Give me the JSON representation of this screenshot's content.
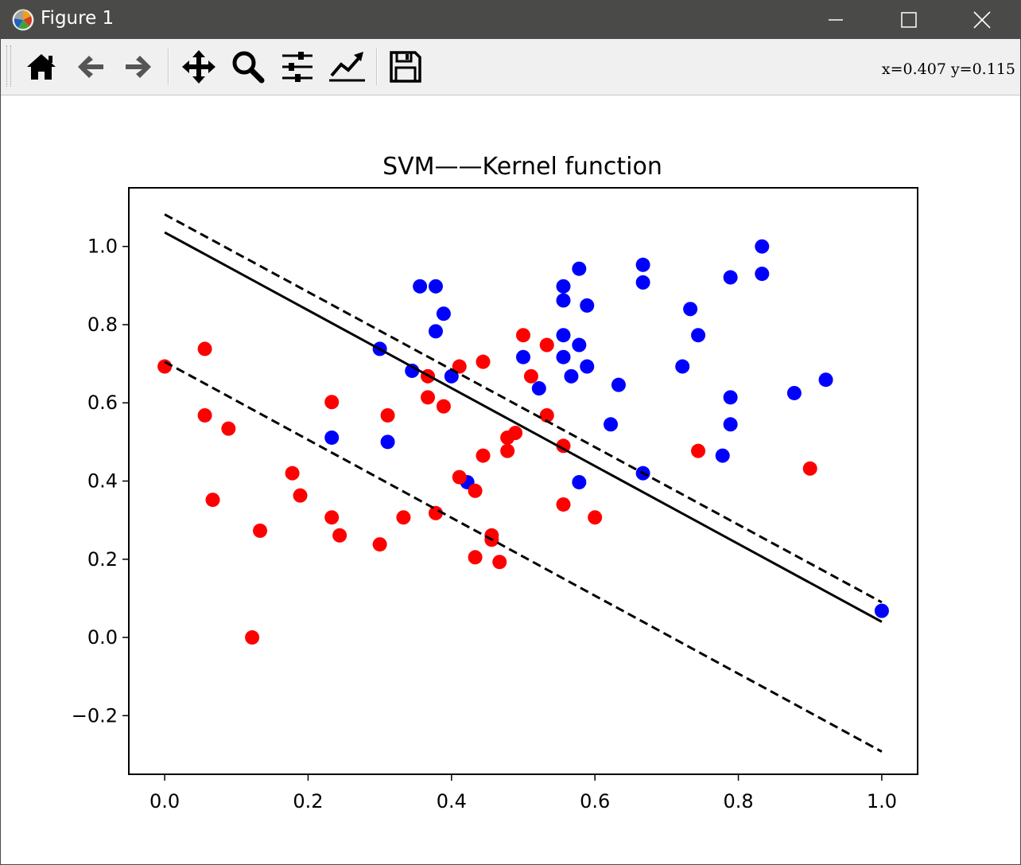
{
  "window": {
    "title": "Figure 1"
  },
  "toolbar": {
    "tools": [
      "home-icon",
      "back-arrow-icon",
      "forward-arrow-icon",
      "pan-icon",
      "zoom-icon",
      "subplots-config-icon",
      "edit-axes-icon",
      "save-icon"
    ],
    "coords": "x=0.407  y=0.115"
  },
  "chart_data": {
    "type": "scatter",
    "title": "SVM——Kernel function",
    "xlabel": "",
    "ylabel": "",
    "xlim": [
      -0.05,
      1.05
    ],
    "ylim": [
      -0.35,
      1.15
    ],
    "xticks": [
      0.0,
      0.2,
      0.4,
      0.6,
      0.8,
      1.0
    ],
    "xtick_labels": [
      "0.0",
      "0.2",
      "0.4",
      "0.6",
      "0.8",
      "1.0"
    ],
    "yticks": [
      -0.2,
      0.0,
      0.2,
      0.4,
      0.6,
      0.8,
      1.0
    ],
    "ytick_labels": [
      "−0.2",
      "0.0",
      "0.2",
      "0.4",
      "0.6",
      "0.8",
      "1.0"
    ],
    "grid": false,
    "series": [
      {
        "color": "#0000ff",
        "points": [
          [
            0.3,
            0.738
          ],
          [
            0.345,
            0.682
          ],
          [
            0.356,
            0.898
          ],
          [
            0.378,
            0.898
          ],
          [
            0.378,
            0.783
          ],
          [
            0.389,
            0.828
          ],
          [
            0.4,
            0.668
          ],
          [
            0.233,
            0.511
          ],
          [
            0.311,
            0.5
          ],
          [
            0.422,
            0.397
          ],
          [
            0.5,
            0.717
          ],
          [
            0.522,
            0.637
          ],
          [
            0.556,
            0.898
          ],
          [
            0.556,
            0.862
          ],
          [
            0.556,
            0.773
          ],
          [
            0.556,
            0.717
          ],
          [
            0.567,
            0.668
          ],
          [
            0.578,
            0.943
          ],
          [
            0.578,
            0.748
          ],
          [
            0.589,
            0.849
          ],
          [
            0.589,
            0.693
          ],
          [
            0.578,
            0.397
          ],
          [
            0.622,
            0.545
          ],
          [
            0.633,
            0.646
          ],
          [
            0.667,
            0.953
          ],
          [
            0.667,
            0.908
          ],
          [
            0.667,
            0.42
          ],
          [
            0.722,
            0.693
          ],
          [
            0.733,
            0.84
          ],
          [
            0.744,
            0.773
          ],
          [
            0.778,
            0.465
          ],
          [
            0.789,
            0.921
          ],
          [
            0.789,
            0.614
          ],
          [
            0.789,
            0.545
          ],
          [
            0.833,
            1.0
          ],
          [
            0.833,
            0.93
          ],
          [
            0.878,
            0.625
          ],
          [
            0.922,
            0.659
          ],
          [
            1.0,
            0.068
          ]
        ]
      },
      {
        "color": "#ff0000",
        "points": [
          [
            0.0,
            0.693
          ],
          [
            0.056,
            0.738
          ],
          [
            0.056,
            0.568
          ],
          [
            0.089,
            0.534
          ],
          [
            0.067,
            0.352
          ],
          [
            0.122,
            0.0
          ],
          [
            0.133,
            0.273
          ],
          [
            0.178,
            0.42
          ],
          [
            0.189,
            0.363
          ],
          [
            0.233,
            0.602
          ],
          [
            0.233,
            0.307
          ],
          [
            0.244,
            0.261
          ],
          [
            0.3,
            0.238
          ],
          [
            0.311,
            0.568
          ],
          [
            0.333,
            0.307
          ],
          [
            0.367,
            0.668
          ],
          [
            0.367,
            0.614
          ],
          [
            0.378,
            0.318
          ],
          [
            0.389,
            0.591
          ],
          [
            0.411,
            0.693
          ],
          [
            0.411,
            0.41
          ],
          [
            0.433,
            0.375
          ],
          [
            0.433,
            0.205
          ],
          [
            0.444,
            0.705
          ],
          [
            0.444,
            0.465
          ],
          [
            0.456,
            0.261
          ],
          [
            0.456,
            0.25
          ],
          [
            0.467,
            0.193
          ],
          [
            0.478,
            0.511
          ],
          [
            0.478,
            0.477
          ],
          [
            0.489,
            0.523
          ],
          [
            0.5,
            0.773
          ],
          [
            0.511,
            0.668
          ],
          [
            0.533,
            0.748
          ],
          [
            0.533,
            0.568
          ],
          [
            0.556,
            0.49
          ],
          [
            0.556,
            0.34
          ],
          [
            0.6,
            0.307
          ],
          [
            0.744,
            0.477
          ],
          [
            0.9,
            0.432
          ]
        ]
      }
    ],
    "lines": [
      {
        "style": "solid",
        "color": "#000000",
        "x": [
          0.0,
          1.0
        ],
        "y": [
          1.036,
          0.04
        ]
      },
      {
        "style": "dashed",
        "color": "#000000",
        "x": [
          0.0,
          1.0
        ],
        "y": [
          1.082,
          0.09
        ]
      },
      {
        "style": "dashed",
        "color": "#000000",
        "x": [
          0.0,
          1.0
        ],
        "y": [
          0.705,
          -0.292
        ]
      }
    ]
  }
}
